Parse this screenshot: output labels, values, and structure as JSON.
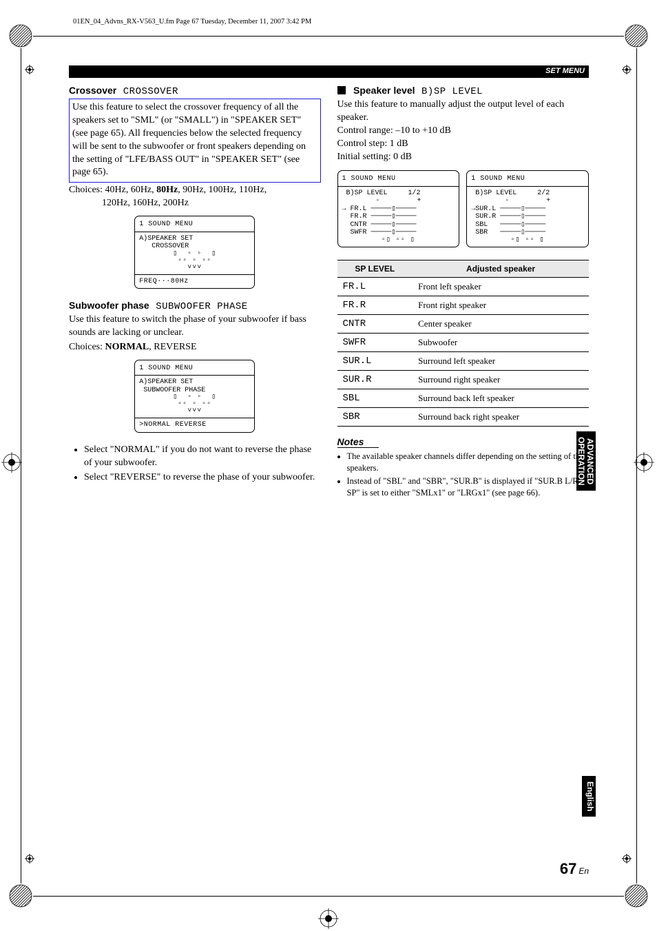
{
  "header_line": "01EN_04_Advns_RX-V563_U.fm  Page 67  Tuesday, December 11, 2007  3:42 PM",
  "bar_label": "SET MENU",
  "left": {
    "crossover": {
      "title": "Crossover",
      "code": "CROSSOVER",
      "body": "Use this feature to select the crossover frequency of all the speakers set to \"SML\" (or \"SMALL\") in \"SPEAKER SET\" (see page 65). All frequencies below the selected frequency will be sent to the subwoofer or front speakers depending on the setting of  \"LFE/BASS OUT\" in \"SPEAKER SET\" (see page 65).",
      "choices_label": "Choices: 40Hz, 60Hz, ",
      "choices_bold": "80Hz",
      "choices_rest": ", 90Hz, 100Hz, 110Hz,",
      "choices_line2": "120Hz, 160Hz, 200Hz",
      "menu": {
        "title": "1 SOUND MENU",
        "l1": "A)SPEAKER SET",
        "l2": "   CROSSOVER",
        "footer": "FREQ···80Hz"
      }
    },
    "sub": {
      "title": "Subwoofer phase",
      "code": "SUBWOOFER PHASE",
      "body": "Use this feature to switch the phase of your subwoofer if bass sounds are lacking or unclear.",
      "choices_label": "Choices: ",
      "choices_bold": "NORMAL",
      "choices_rest": ", REVERSE",
      "menu": {
        "title": "1 SOUND MENU",
        "l1": "A)SPEAKER SET",
        "l2": " SUBWOOFER PHASE",
        "footer": ">NORMAL  REVERSE"
      },
      "bullets": [
        "Select \"NORMAL\" if you do not want to reverse the phase of your subwoofer.",
        "Select \"REVERSE\" to reverse the phase of your subwoofer."
      ]
    }
  },
  "right": {
    "sp": {
      "title": "Speaker level",
      "code": "B)SP LEVEL",
      "body": "Use this feature to manually adjust the output level of each speaker.",
      "range": "Control range: –10 to +10 dB",
      "step": "Control step: 1 dB",
      "init": "Initial setting: 0 dB",
      "menu1": {
        "title": "1 SOUND MENU",
        "hdr": " B)SP LEVEL     1/2",
        "rows": [
          "→ FR.L ─────▯─────",
          "  FR.R ─────▯─────",
          "  CNTR ─────▯─────",
          "  SWFR ─────▯─────"
        ]
      },
      "menu2": {
        "title": "1 SOUND MENU",
        "hdr": " B)SP LEVEL     2/2",
        "rows": [
          "→SUR.L ─────▯─────",
          " SUR.R ─────▯─────",
          " SBL   ─────▯─────",
          " SBR   ─────▯─────"
        ]
      }
    },
    "table": {
      "h1": "SP LEVEL",
      "h2": "Adjusted speaker",
      "rows": [
        {
          "c": "FR.L",
          "d": "Front left speaker"
        },
        {
          "c": "FR.R",
          "d": "Front right speaker"
        },
        {
          "c": "CNTR",
          "d": "Center speaker"
        },
        {
          "c": "SWFR",
          "d": "Subwoofer"
        },
        {
          "c": "SUR.L",
          "d": "Surround left speaker"
        },
        {
          "c": "SUR.R",
          "d": "Surround right speaker"
        },
        {
          "c": "SBL",
          "d": "Surround back left speaker"
        },
        {
          "c": "SBR",
          "d": "Surround back right speaker"
        }
      ]
    },
    "notes_hdr": "Notes",
    "notes": [
      "The available speaker channels differ depending on the setting of the speakers.",
      "Instead of \"SBL\" and \"SBR\", \"SUR.B\" is displayed if \"SUR.B L/R SP\" is set to either \"SMLx1\" or \"LRGx1\" (see page 66)."
    ]
  },
  "side_tab1_a": "ADVANCED",
  "side_tab1_b": "OPERATION",
  "side_tab2": "English",
  "page_num": "67",
  "page_lang": "En"
}
